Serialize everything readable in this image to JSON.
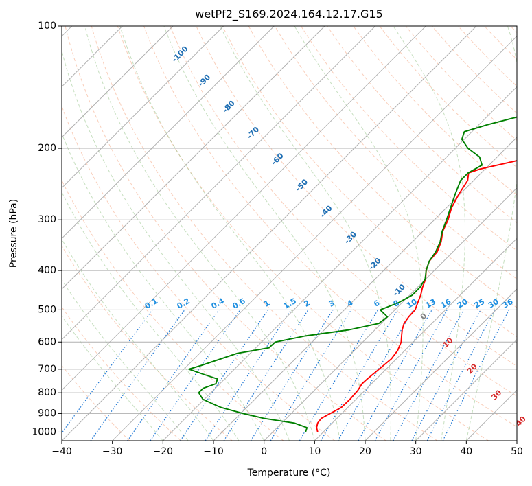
{
  "chart_data": {
    "type": "line",
    "subtype": "skew-T log-P diagram",
    "title": "wetPf2_S169.2024.164.12.17.G15",
    "xlabel": "Temperature (°C)",
    "ylabel": "Pressure (hPa)",
    "xlim": [
      -40,
      50
    ],
    "ylim": [
      1050,
      100
    ],
    "y_scale": "log",
    "x_ticks": [
      -40,
      -30,
      -20,
      -10,
      0,
      10,
      20,
      30,
      40,
      50
    ],
    "y_ticks": [
      100,
      200,
      300,
      400,
      500,
      600,
      700,
      800,
      900,
      1000
    ],
    "grid": true,
    "background_lines": {
      "skewed_isotherm_labels": [
        "-100",
        "-90",
        "-80",
        "-70",
        "-60",
        "-50",
        "-40",
        "-30",
        "-20",
        "-10",
        "0",
        "10",
        "20",
        "30",
        "40"
      ],
      "mixing_ratio_labels": [
        "0.1",
        "0.2",
        "0.4",
        "0.6",
        "1",
        "1.5",
        "2",
        "3",
        "4",
        "6",
        "8",
        "10",
        "13",
        "16",
        "20",
        "25",
        "30",
        "36"
      ]
    },
    "series": [
      {
        "color": "#ff0000",
        "points": [
          {
            "p": 1000,
            "t": 8.9
          },
          {
            "p": 975,
            "t": 7.8
          },
          {
            "p": 950,
            "t": 7.1
          },
          {
            "p": 925,
            "t": 6.9
          },
          {
            "p": 900,
            "t": 7.7
          },
          {
            "p": 870,
            "t": 8.7
          },
          {
            "p": 830,
            "t": 8.8
          },
          {
            "p": 790,
            "t": 8.6
          },
          {
            "p": 760,
            "t": 8.1
          },
          {
            "p": 740,
            "t": 8.2
          },
          {
            "p": 700,
            "t": 8.6
          },
          {
            "p": 660,
            "t": 9.0
          },
          {
            "p": 630,
            "t": 8.6
          },
          {
            "p": 600,
            "t": 7.6
          },
          {
            "p": 580,
            "t": 6.5
          },
          {
            "p": 560,
            "t": 5.4
          },
          {
            "p": 540,
            "t": 4.5
          },
          {
            "p": 520,
            "t": 4.1
          },
          {
            "p": 500,
            "t": 4.0
          },
          {
            "p": 480,
            "t": 3.1
          },
          {
            "p": 460,
            "t": 2.2
          },
          {
            "p": 440,
            "t": 1.0
          },
          {
            "p": 420,
            "t": 0.0
          },
          {
            "p": 400,
            "t": -1.6
          },
          {
            "p": 380,
            "t": -2.8
          },
          {
            "p": 360,
            "t": -3.1
          },
          {
            "p": 340,
            "t": -4.3
          },
          {
            "p": 320,
            "t": -6.1
          },
          {
            "p": 300,
            "t": -7.3
          },
          {
            "p": 280,
            "t": -9.0
          },
          {
            "p": 260,
            "t": -10.2
          },
          {
            "p": 240,
            "t": -11.2
          },
          {
            "p": 230,
            "t": -12.5
          },
          {
            "p": 225,
            "t": -11.0
          },
          {
            "p": 215,
            "t": -5.6
          },
          {
            "p": 200,
            "t": 2.5
          },
          {
            "p": 185,
            "t": 7.3
          },
          {
            "p": 175,
            "t": 9.3
          },
          {
            "p": 160,
            "t": 14.5
          },
          {
            "p": 150,
            "t": 18.6
          },
          {
            "p": 140,
            "t": 21.8
          },
          {
            "p": 130,
            "t": 23.3
          },
          {
            "p": 120,
            "t": 24.5
          },
          {
            "p": 110,
            "t": 24.6
          },
          {
            "p": 100,
            "t": 25.2
          }
        ]
      },
      {
        "color": "#008000",
        "points": [
          {
            "p": 1000,
            "t": 6.5
          },
          {
            "p": 975,
            "t": 5.9
          },
          {
            "p": 950,
            "t": 2.5
          },
          {
            "p": 925,
            "t": -4.5
          },
          {
            "p": 900,
            "t": -9.5
          },
          {
            "p": 870,
            "t": -15.0
          },
          {
            "p": 850,
            "t": -17.7
          },
          {
            "p": 830,
            "t": -20.3
          },
          {
            "p": 800,
            "t": -22.4
          },
          {
            "p": 780,
            "t": -22.4
          },
          {
            "p": 760,
            "t": -20.8
          },
          {
            "p": 740,
            "t": -21.4
          },
          {
            "p": 720,
            "t": -25.2
          },
          {
            "p": 700,
            "t": -29.0
          },
          {
            "p": 685,
            "t": -27.3
          },
          {
            "p": 660,
            "t": -24.7
          },
          {
            "p": 640,
            "t": -22.6
          },
          {
            "p": 620,
            "t": -17.4
          },
          {
            "p": 600,
            "t": -17.3
          },
          {
            "p": 580,
            "t": -12.6
          },
          {
            "p": 560,
            "t": -5.1
          },
          {
            "p": 540,
            "t": -0.5
          },
          {
            "p": 520,
            "t": -0.1
          },
          {
            "p": 500,
            "t": -2.9
          },
          {
            "p": 480,
            "t": -0.7
          },
          {
            "p": 460,
            "t": 0.5
          },
          {
            "p": 440,
            "t": 0.5
          },
          {
            "p": 420,
            "t": -0.1
          },
          {
            "p": 400,
            "t": -1.6
          },
          {
            "p": 380,
            "t": -2.8
          },
          {
            "p": 360,
            "t": -3.4
          },
          {
            "p": 340,
            "t": -4.5
          },
          {
            "p": 320,
            "t": -6.2
          },
          {
            "p": 300,
            "t": -7.6
          },
          {
            "p": 280,
            "t": -9.2
          },
          {
            "p": 260,
            "t": -10.9
          },
          {
            "p": 240,
            "t": -12.6
          },
          {
            "p": 230,
            "t": -12.6
          },
          {
            "p": 220,
            "t": -11.4
          },
          {
            "p": 210,
            "t": -13.5
          },
          {
            "p": 200,
            "t": -17.5
          },
          {
            "p": 190,
            "t": -20.5
          },
          {
            "p": 182,
            "t": -21.5
          },
          {
            "p": 175,
            "t": -18.3
          },
          {
            "p": 165,
            "t": -12.5
          },
          {
            "p": 155,
            "t": -9.6
          },
          {
            "p": 145,
            "t": -8.0
          },
          {
            "p": 135,
            "t": -8.0
          },
          {
            "p": 125,
            "t": -6.3
          },
          {
            "p": 115,
            "t": -2.0
          },
          {
            "p": 100,
            "t": 4.1
          }
        ]
      }
    ]
  }
}
